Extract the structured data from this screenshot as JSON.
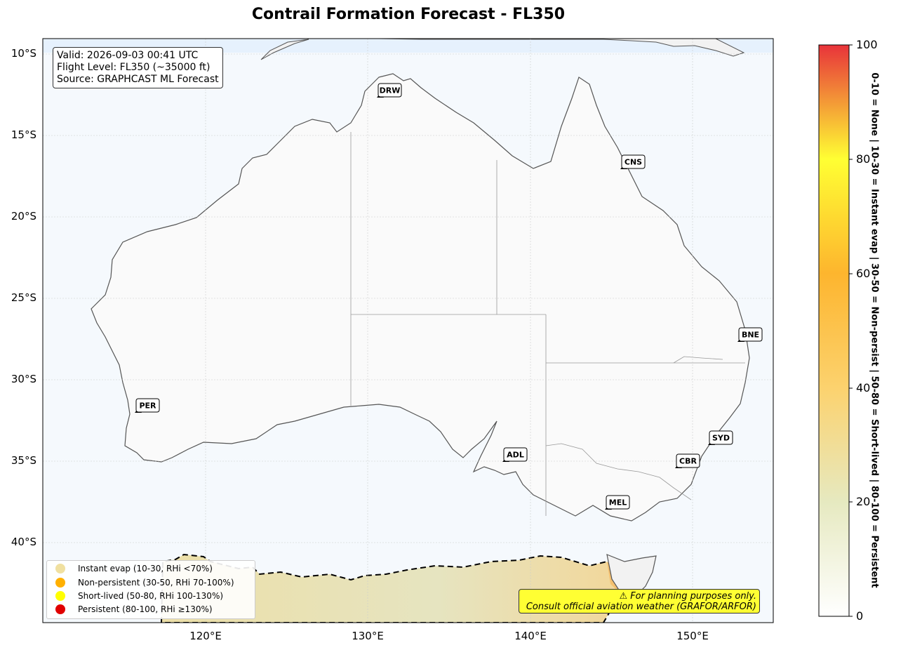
{
  "title": "Contrail Formation Forecast - FL350",
  "info": {
    "valid": "Valid: 2026-09-03 00:41 UTC",
    "flight_level": "Flight Level: FL350 (~35000 ft)",
    "source": "Source: GRAPHCAST ML Forecast"
  },
  "axes": {
    "lat_labels": [
      "10°S",
      "15°S",
      "20°S",
      "25°S",
      "30°S",
      "35°S",
      "40°S"
    ],
    "lon_labels": [
      "120°E",
      "130°E",
      "140°E",
      "150°E"
    ]
  },
  "airports": [
    {
      "code": "DRW"
    },
    {
      "code": "CNS"
    },
    {
      "code": "BNE"
    },
    {
      "code": "PER"
    },
    {
      "code": "SYD"
    },
    {
      "code": "ADL"
    },
    {
      "code": "CBR"
    },
    {
      "code": "MEL"
    }
  ],
  "legend": [
    {
      "label": "Instant evap (10-30, RHi <70%)",
      "color": "#f0e0a0"
    },
    {
      "label": "Non-persistent (30-50, RHi 70-100%)",
      "color": "#ffb000"
    },
    {
      "label": "Short-lived (50-80, RHi 100-130%)",
      "color": "#ffff00"
    },
    {
      "label": "Persistent (80-100, RHi ≥130%)",
      "color": "#e00000"
    }
  ],
  "disclaimer": {
    "line1": "⚠ For planning purposes only.",
    "line2": "Consult official aviation weather (GRAFOR/ARFOR)"
  },
  "colorbar": {
    "ticks": [
      "0",
      "20",
      "40",
      "60",
      "80",
      "100"
    ],
    "label": "0-10 = None  |  10-30 = Instant evap  |  30-50 = Non-persist  |  50-80 = Short-lived  |  80-100 = Persistent",
    "colors": [
      "#ffffff",
      "#e6e9c0",
      "#fcd26e",
      "#fdb52e",
      "#ffff33",
      "#e8333a"
    ]
  }
}
